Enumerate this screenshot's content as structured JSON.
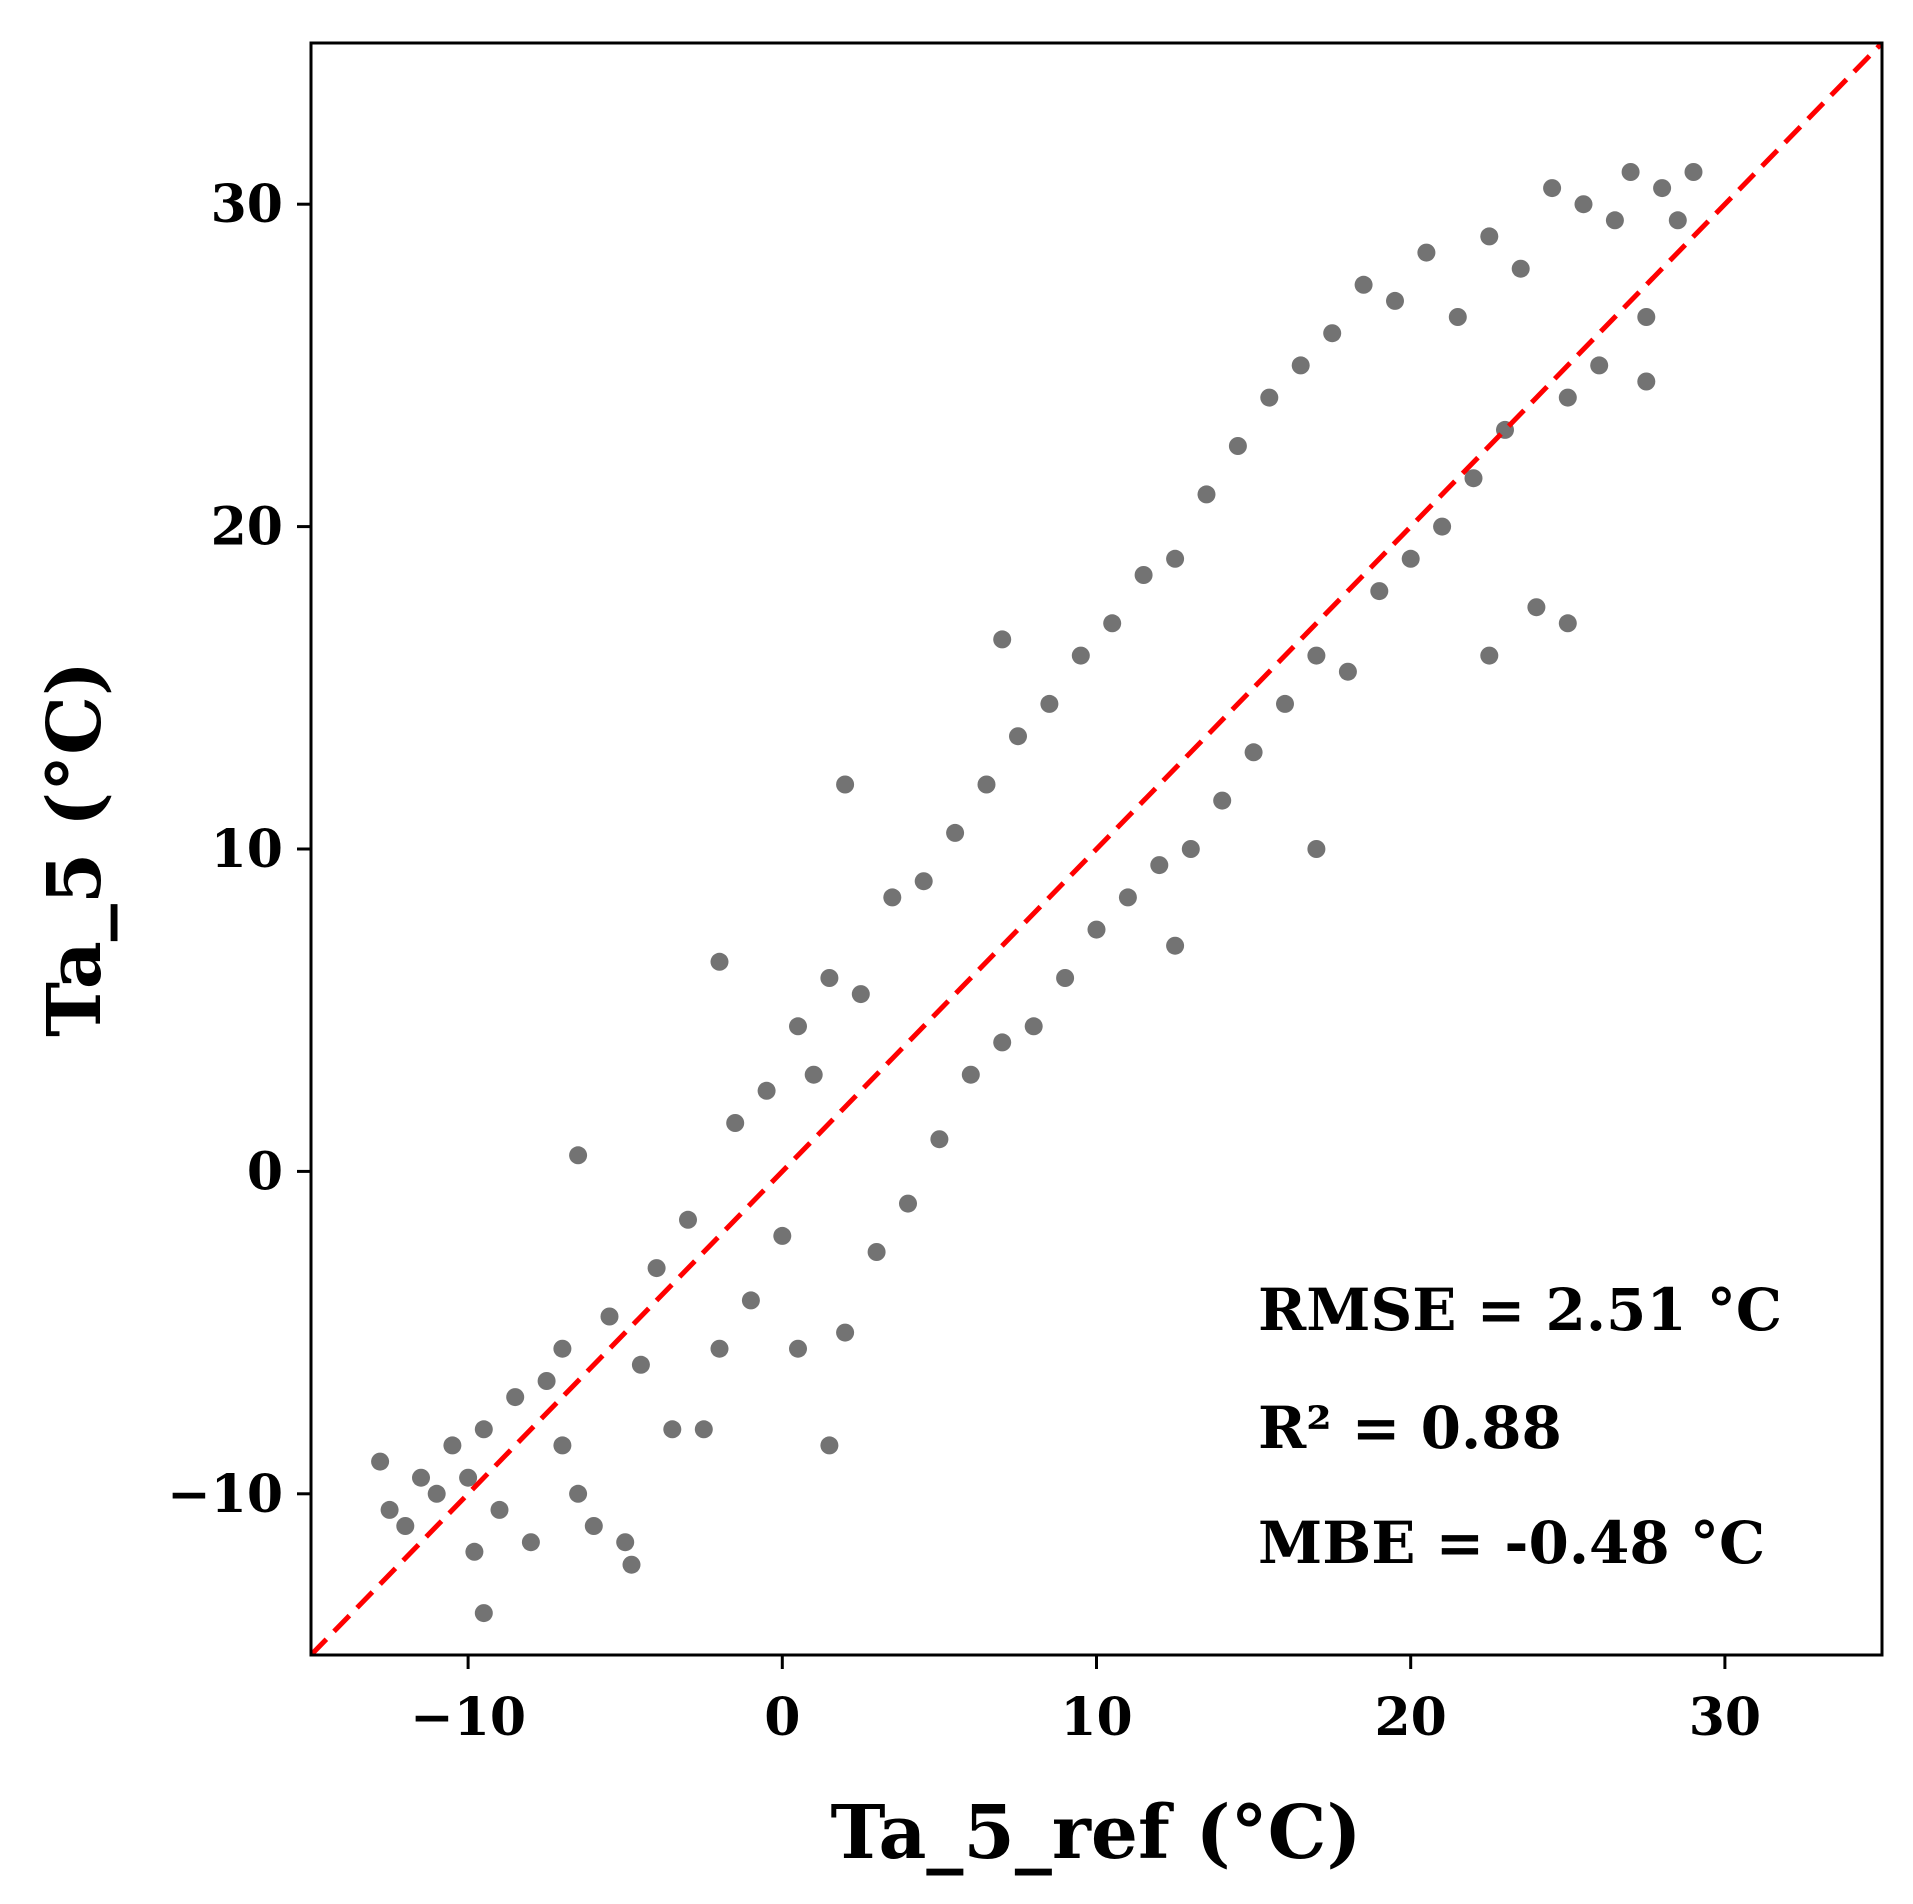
{
  "chart_data": {
    "type": "scatter",
    "title": "",
    "xlabel": "Ta_5_ref (°C)",
    "ylabel": "Ta_5 (°C)",
    "xlim": [
      -15,
      35
    ],
    "ylim": [
      -15,
      35
    ],
    "x_ticks": [
      -10,
      0,
      10,
      20,
      30
    ],
    "y_ticks": [
      -10,
      0,
      10,
      20,
      30
    ],
    "x_tick_labels": [
      "−10",
      "0",
      "10",
      "20",
      "30"
    ],
    "y_tick_labels": [
      "−10",
      "0",
      "10",
      "20",
      "30"
    ],
    "grid": false,
    "marker_color": "#000000",
    "marker_opacity": 0.45,
    "reference_line": {
      "style": "dashed",
      "color": "#ff0000",
      "from": [
        -15,
        -15
      ],
      "to": [
        35,
        35
      ]
    },
    "annotations": [
      "RMSE = 2.51 °C",
      "R² = 0.88",
      "MBE = -0.48 °C"
    ],
    "series": [
      {
        "points": [
          [
            -12.8,
            -9.0
          ],
          [
            -12.5,
            -10.5
          ],
          [
            -12.0,
            -11.0
          ],
          [
            -11.5,
            -9.5
          ],
          [
            -11.0,
            -10.0
          ],
          [
            -10.5,
            -8.5
          ],
          [
            -10.0,
            -9.5
          ],
          [
            -9.8,
            -11.8
          ],
          [
            -9.5,
            -13.7
          ],
          [
            -9.5,
            -8.0
          ],
          [
            -9.0,
            -10.5
          ],
          [
            -8.5,
            -7.0
          ],
          [
            -8.0,
            -11.5
          ],
          [
            -7.5,
            -6.5
          ],
          [
            -7.0,
            -8.5
          ],
          [
            -7.0,
            -5.5
          ],
          [
            -6.5,
            -10.0
          ],
          [
            -6.0,
            -11.0
          ],
          [
            -5.5,
            -4.5
          ],
          [
            -5.0,
            -11.5
          ],
          [
            -4.8,
            -12.2
          ],
          [
            -4.5,
            -6.0
          ],
          [
            -4.0,
            -3.0
          ],
          [
            -3.5,
            -8.0
          ],
          [
            -3.0,
            -1.5
          ],
          [
            -2.5,
            -8.0
          ],
          [
            -2.0,
            -5.5
          ],
          [
            -1.5,
            1.5
          ],
          [
            -1.0,
            -4.0
          ],
          [
            -0.5,
            2.5
          ],
          [
            0.0,
            -2.0
          ],
          [
            0.5,
            4.5
          ],
          [
            0.5,
            -5.5
          ],
          [
            1.0,
            3.0
          ],
          [
            1.5,
            -8.5
          ],
          [
            1.5,
            6.0
          ],
          [
            2.0,
            -5.0
          ],
          [
            2.5,
            5.5
          ],
          [
            3.0,
            -2.5
          ],
          [
            3.5,
            8.5
          ],
          [
            4.0,
            -1.0
          ],
          [
            4.5,
            9.0
          ],
          [
            5.0,
            1.0
          ],
          [
            5.5,
            10.5
          ],
          [
            6.0,
            3.0
          ],
          [
            6.5,
            12.0
          ],
          [
            7.0,
            4.0
          ],
          [
            7.5,
            13.5
          ],
          [
            8.0,
            4.5
          ],
          [
            8.5,
            14.5
          ],
          [
            9.0,
            6.0
          ],
          [
            9.5,
            16.0
          ],
          [
            10.0,
            7.5
          ],
          [
            10.5,
            17.0
          ],
          [
            11.0,
            8.5
          ],
          [
            11.5,
            18.5
          ],
          [
            12.0,
            9.5
          ],
          [
            12.5,
            19.0
          ],
          [
            13.0,
            10.0
          ],
          [
            13.5,
            21.0
          ],
          [
            14.0,
            11.5
          ],
          [
            14.5,
            22.5
          ],
          [
            15.0,
            13.0
          ],
          [
            15.5,
            24.0
          ],
          [
            16.0,
            14.5
          ],
          [
            16.5,
            25.0
          ],
          [
            17.0,
            16.0
          ],
          [
            17.5,
            26.0
          ],
          [
            18.0,
            15.5
          ],
          [
            18.5,
            27.5
          ],
          [
            19.0,
            18.0
          ],
          [
            19.5,
            27.0
          ],
          [
            20.0,
            19.0
          ],
          [
            20.5,
            28.5
          ],
          [
            21.0,
            20.0
          ],
          [
            21.5,
            26.5
          ],
          [
            22.0,
            21.5
          ],
          [
            22.5,
            29.0
          ],
          [
            23.0,
            23.0
          ],
          [
            23.5,
            28.0
          ],
          [
            24.0,
            17.5
          ],
          [
            24.5,
            30.5
          ],
          [
            25.0,
            24.0
          ],
          [
            25.5,
            30.0
          ],
          [
            26.0,
            25.0
          ],
          [
            26.5,
            29.5
          ],
          [
            27.0,
            31.0
          ],
          [
            27.5,
            26.5
          ],
          [
            28.0,
            30.5
          ],
          [
            28.5,
            29.5
          ],
          [
            29.0,
            31.0
          ],
          [
            27.5,
            24.5
          ],
          [
            25.0,
            17.0
          ],
          [
            17.0,
            10.0
          ],
          [
            12.5,
            7.0
          ],
          [
            2.0,
            12.0
          ],
          [
            7.0,
            16.5
          ],
          [
            -2.0,
            6.5
          ],
          [
            -6.5,
            0.5
          ],
          [
            22.5,
            16.0
          ]
        ]
      }
    ]
  }
}
